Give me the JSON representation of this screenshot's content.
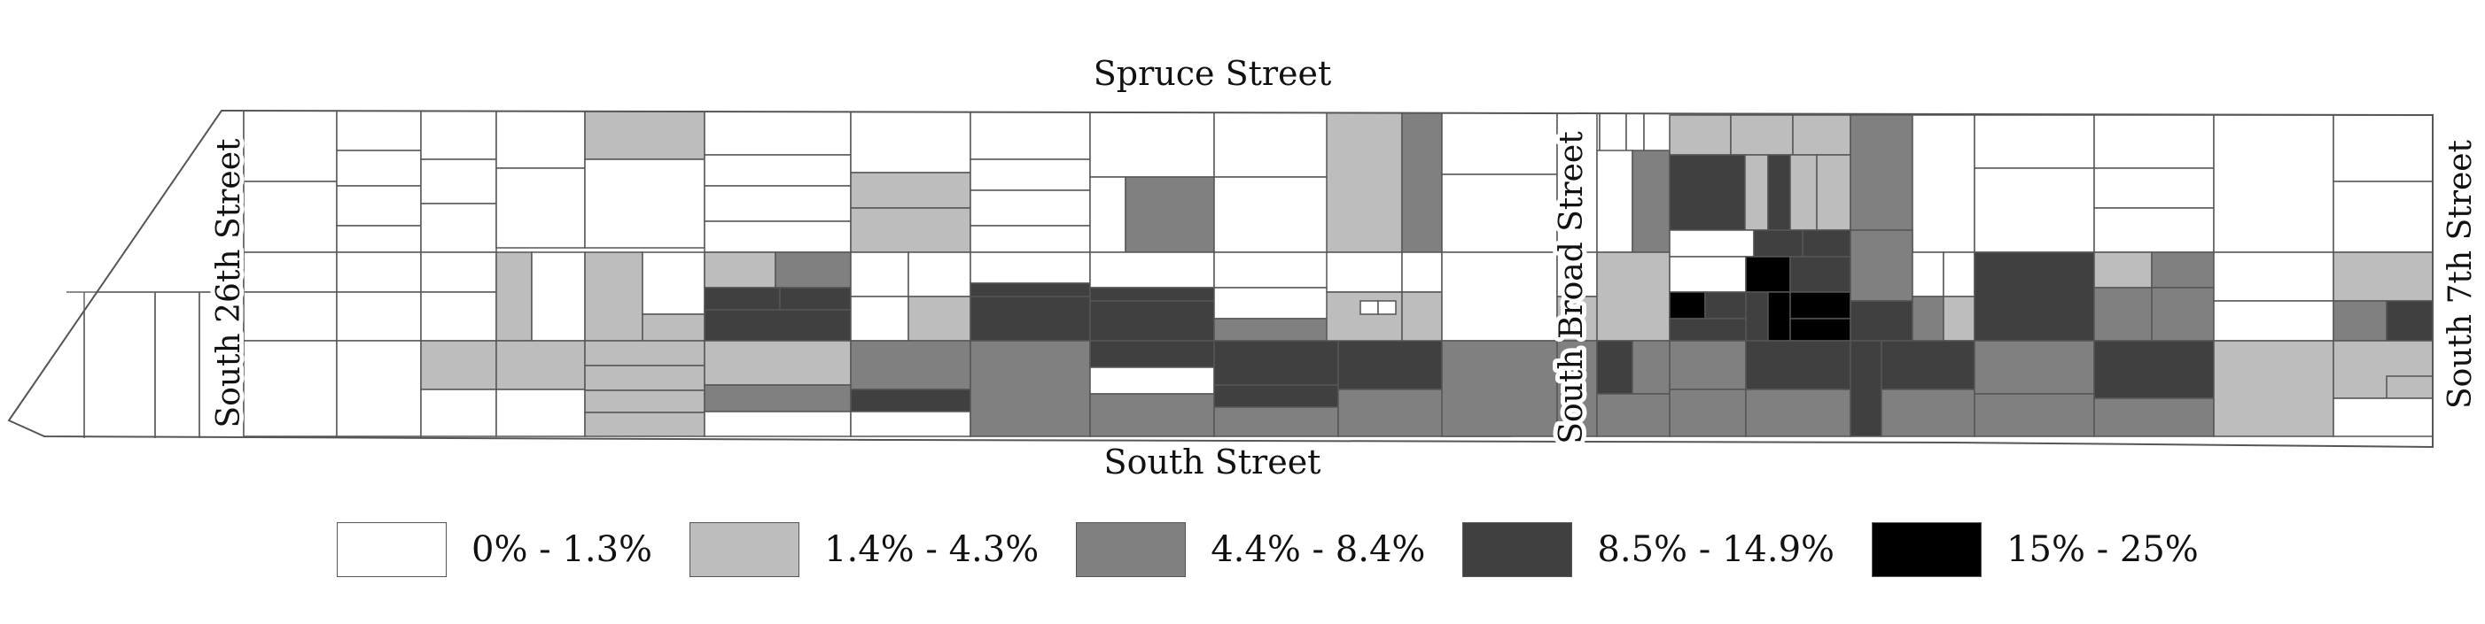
{
  "streets": {
    "north": "Spruce Street",
    "south": "South Street",
    "west": "South 26th Street",
    "center": "South Broad Street",
    "east": "South 7th Street"
  },
  "classes": [
    {
      "label": "0% - 1.3%",
      "color": "#ffffff"
    },
    {
      "label": "1.4% - 4.3%",
      "color": "#bdbdbd"
    },
    {
      "label": "4.4% - 8.4%",
      "color": "#808080"
    },
    {
      "label": "8.5% - 14.9%",
      "color": "#404040"
    },
    {
      "label": "15% - 25%",
      "color": "#000000"
    }
  ]
}
